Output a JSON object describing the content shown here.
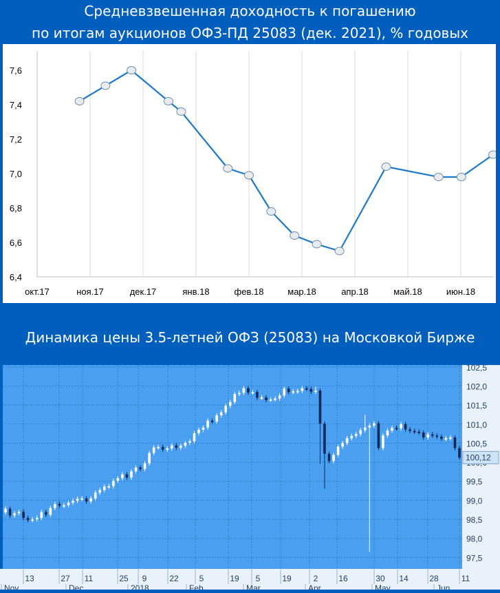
{
  "titles": {
    "chart1_line1": "Средневзвешенная доходность к погашению",
    "chart1_line2": "по итогам аукционов ОФЗ-ПД 25083 (дек. 2021), % годовых",
    "chart2": "Динамика цены 3.5-летней ОФЗ (25083) на Московкой Бирже"
  },
  "colors": {
    "page_bg": "#005fbd",
    "line": "#1e78c8",
    "marker_fill": "#e8ecef",
    "candle_panel_bg": "#4a9ff0",
    "candle_up": "#ffffff",
    "candle_down": "#0a2a5a",
    "current_price_label_bg": "#cfe3f7"
  },
  "chart_data": [
    {
      "type": "line",
      "title": "Средневзвешенная доходность к погашению по итогам аукционов ОФЗ-ПД 25083 (дек. 2021), % годовых",
      "x_tick_labels": [
        "окт.17",
        "ноя.17",
        "дек.17",
        "янв.18",
        "фев.18",
        "мар.18",
        "апр.18",
        "май.18",
        "июн.18"
      ],
      "y_tick_labels": [
        "6,4",
        "6,6",
        "6,8",
        "7,0",
        "7,2",
        "7,4",
        "7,6"
      ],
      "ylim": [
        6.4,
        7.7
      ],
      "grid": "vertical",
      "x_unit": "months since окт.17",
      "points": [
        {
          "x": 0.8,
          "y": 7.42
        },
        {
          "x": 1.29,
          "y": 7.51
        },
        {
          "x": 1.78,
          "y": 7.6
        },
        {
          "x": 2.48,
          "y": 7.42
        },
        {
          "x": 2.72,
          "y": 7.36
        },
        {
          "x": 3.6,
          "y": 7.03
        },
        {
          "x": 4.0,
          "y": 6.99
        },
        {
          "x": 4.42,
          "y": 6.78
        },
        {
          "x": 4.86,
          "y": 6.64
        },
        {
          "x": 5.28,
          "y": 6.59
        },
        {
          "x": 5.71,
          "y": 6.55
        },
        {
          "x": 6.59,
          "y": 7.04
        },
        {
          "x": 7.58,
          "y": 6.98
        },
        {
          "x": 8.01,
          "y": 6.98
        },
        {
          "x": 8.61,
          "y": 7.11
        }
      ]
    },
    {
      "type": "candlestick",
      "title": "Динамика цены 3.5-летней ОФЗ (25083) на Московкой Бирже",
      "x_tick_labels": [
        "13",
        "27",
        "11",
        "25",
        "9",
        "22",
        "5",
        "19",
        "5",
        "19",
        "2",
        "16",
        "30",
        "14",
        "28",
        "11"
      ],
      "x_month_labels": [
        "Nov",
        "Dec",
        "2018",
        "Feb",
        "Mar",
        "Apr",
        "May",
        "Jun"
      ],
      "y_tick_labels": [
        "97,5",
        "98,0",
        "98,5",
        "99,0",
        "99,5",
        "100,0",
        "100,5",
        "101,0",
        "101,5",
        "102,0",
        "102,5"
      ],
      "ylim": [
        97.2,
        102.55
      ],
      "grid": "both",
      "last_price_label": "100,12",
      "closes": [
        98.78,
        98.6,
        98.66,
        98.7,
        98.54,
        98.48,
        98.5,
        98.54,
        98.69,
        98.62,
        98.8,
        98.9,
        98.86,
        98.87,
        98.94,
        98.99,
        99.04,
        99.05,
        98.97,
        99.05,
        99.2,
        99.27,
        99.36,
        99.37,
        99.51,
        99.58,
        99.68,
        99.6,
        99.76,
        99.86,
        99.82,
        99.97,
        100.24,
        100.39,
        100.4,
        100.33,
        100.36,
        100.44,
        100.38,
        100.43,
        100.51,
        100.55,
        100.76,
        100.85,
        100.91,
        101.09,
        101.07,
        101.23,
        101.31,
        101.48,
        101.58,
        101.79,
        101.82,
        101.94,
        101.83,
        101.84,
        101.69,
        101.7,
        101.63,
        101.65,
        101.67,
        101.75,
        101.93,
        101.84,
        101.86,
        101.87,
        101.94,
        101.92,
        101.85,
        101.88,
        101.01,
        100.22,
        100.03,
        100.19,
        100.41,
        100.5,
        100.63,
        100.69,
        100.74,
        100.84,
        100.91,
        100.96,
        101.02,
        100.37,
        100.7,
        100.83,
        100.9,
        100.89,
        101.0,
        100.86,
        100.82,
        100.8,
        100.78,
        100.65,
        100.73,
        100.7,
        100.67,
        100.61,
        100.63,
        100.65,
        100.37,
        100.12
      ]
    }
  ]
}
